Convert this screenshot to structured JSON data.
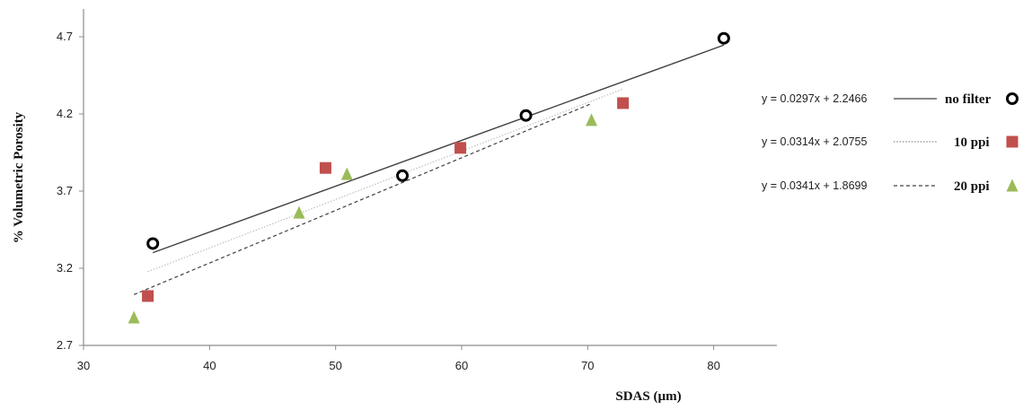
{
  "chart_data": {
    "type": "scatter",
    "title": "",
    "xlabel": "SDAS (µm)",
    "ylabel": "% Volumetric Porosity",
    "xlim": [
      30,
      85
    ],
    "ylim": [
      2.7,
      4.85
    ],
    "xticks": [
      30,
      40,
      50,
      60,
      70,
      80
    ],
    "yticks": [
      2.7,
      3.2,
      3.7,
      4.2,
      4.7
    ],
    "x_tick_labels": [
      "30",
      "40",
      "50",
      "60",
      "70",
      "80"
    ],
    "y_tick_labels": [
      "2.7",
      "3.2",
      "3.7",
      "4.2",
      "4.7"
    ],
    "grid": false,
    "legend_position": "right",
    "series": [
      {
        "name": "no filter",
        "marker": "circle-open",
        "color": "#000000",
        "line_style": "solid",
        "line_color": "#404040",
        "equation": "y = 0.0297x + 2.2466",
        "slope": 0.0297,
        "intercept": 2.2466,
        "fit_x_range": [
          35.5,
          80.8
        ],
        "points": [
          {
            "x": 35.5,
            "y": 3.36
          },
          {
            "x": 55.3,
            "y": 3.8
          },
          {
            "x": 65.1,
            "y": 4.19
          },
          {
            "x": 80.8,
            "y": 4.69
          }
        ]
      },
      {
        "name": "10 ppi",
        "marker": "square",
        "color": "#c0504d",
        "line_style": "dotted",
        "line_color": "#bfbfbf",
        "equation": "y = 0.0314x + 2.0755",
        "slope": 0.0314,
        "intercept": 2.0755,
        "fit_x_range": [
          35.1,
          72.8
        ],
        "points": [
          {
            "x": 35.1,
            "y": 3.02
          },
          {
            "x": 49.2,
            "y": 3.85
          },
          {
            "x": 59.9,
            "y": 3.98
          },
          {
            "x": 72.8,
            "y": 4.27
          }
        ]
      },
      {
        "name": "20 ppi",
        "marker": "triangle",
        "color": "#9bbb59",
        "line_style": "dashed",
        "line_color": "#404040",
        "equation": "y = 0.0341x + 1.8699",
        "slope": 0.0341,
        "intercept": 1.8699,
        "fit_x_range": [
          34.0,
          70.3
        ],
        "points": [
          {
            "x": 34.0,
            "y": 2.88
          },
          {
            "x": 47.1,
            "y": 3.56
          },
          {
            "x": 50.9,
            "y": 3.81
          },
          {
            "x": 70.3,
            "y": 4.16
          }
        ]
      }
    ]
  }
}
